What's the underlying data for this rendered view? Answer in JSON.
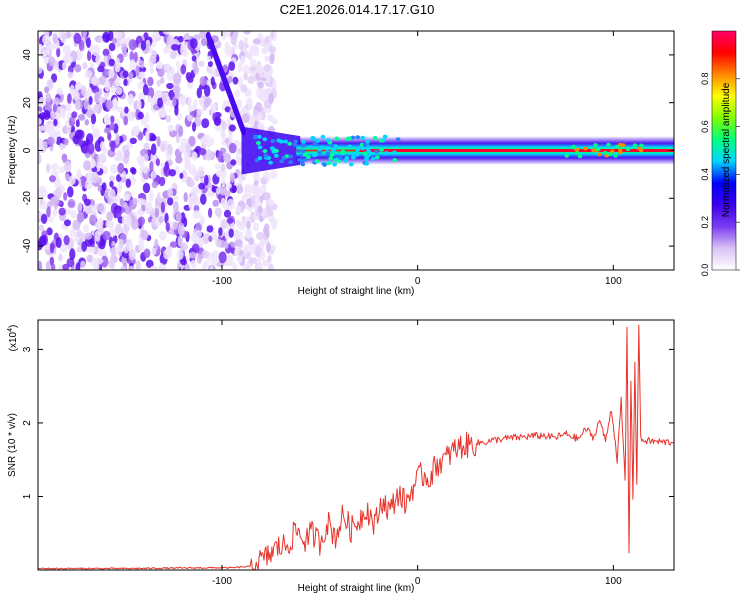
{
  "title": "C2E1.2026.014.17.17.G10",
  "chart_data": [
    {
      "type": "heatmap",
      "name": "spectrogram",
      "xlabel": "Height of straight line (km)",
      "ylabel": "Frequency (Hz)",
      "xlim": [
        -194,
        131
      ],
      "ylim": [
        -50,
        50
      ],
      "xticks": [
        -100,
        0,
        100
      ],
      "xtick_labels": [
        "-100",
        "0",
        "100"
      ],
      "yticks": [
        -40,
        -20,
        0,
        20,
        40
      ],
      "ytick_labels": [
        "-40",
        "-20",
        "0",
        "20",
        "40"
      ],
      "description_regions": {
        "noise_region_x": [
          -194,
          -85
        ],
        "transition_x": [
          -85,
          -60
        ],
        "signal_band_x": [
          -60,
          131
        ],
        "signal_center_hz": 0
      }
    },
    {
      "type": "colorbar",
      "name": "amplitude-colorbar",
      "label": "Normalized spectral amplitude",
      "range": [
        0.0,
        1.0
      ],
      "ticks": [
        0.0,
        0.2,
        0.4,
        0.6,
        0.8
      ],
      "tick_labels": [
        "0.0",
        "0.2",
        "0.4",
        "0.6",
        "0.8"
      ],
      "colormap": [
        "#ffffff",
        "#d9c2f5",
        "#7a3cf0",
        "#3b00f0",
        "#0000ff",
        "#00d6ff",
        "#00ff7f",
        "#7fff00",
        "#ffff00",
        "#ff8800",
        "#ff0000",
        "#ff0066"
      ]
    },
    {
      "type": "line",
      "name": "snr",
      "xlabel": "Height of straight line (km)",
      "ylabel": "SNR (10 * v/v)",
      "y_exponent_label": "(x10",
      "y_exponent_power": "4",
      "y_exponent_close": ")",
      "xlim": [
        -194,
        131
      ],
      "ylim": [
        0,
        3.4
      ],
      "xticks": [
        -100,
        0,
        100
      ],
      "xtick_labels": [
        "-100",
        "0",
        "100"
      ],
      "yticks": [
        1,
        2,
        3
      ],
      "ytick_labels": [
        "1",
        "2",
        "3"
      ],
      "color": "#e8332b",
      "x": [
        -194,
        -150,
        -110,
        -95,
        -85,
        -78,
        -72,
        -66,
        -62,
        -58,
        -54,
        -50,
        -46,
        -42,
        -38,
        -34,
        -30,
        -26,
        -22,
        -18,
        -14,
        -10,
        -6,
        -2,
        2,
        6,
        10,
        14,
        18,
        22,
        26,
        30,
        36,
        42,
        50,
        58,
        64,
        70,
        76,
        82,
        86,
        90,
        93,
        96,
        99,
        102,
        104,
        106,
        107,
        108,
        109,
        110,
        111,
        112,
        113,
        114,
        116,
        120,
        125,
        131
      ],
      "y": [
        0.02,
        0.02,
        0.03,
        0.03,
        0.05,
        0.15,
        0.3,
        0.35,
        0.55,
        0.4,
        0.5,
        0.38,
        0.65,
        0.45,
        0.75,
        0.55,
        0.68,
        0.85,
        0.6,
        0.95,
        0.8,
        1.05,
        0.9,
        1.15,
        1.3,
        1.25,
        1.45,
        1.5,
        1.62,
        1.68,
        1.7,
        1.72,
        1.75,
        1.78,
        1.8,
        1.82,
        1.83,
        1.8,
        1.85,
        1.78,
        1.92,
        1.8,
        2.05,
        1.75,
        2.2,
        1.5,
        2.3,
        1.2,
        3.3,
        0.25,
        2.6,
        1.0,
        2.8,
        1.2,
        3.35,
        1.78,
        1.76,
        1.75,
        1.74,
        1.74
      ]
    }
  ]
}
